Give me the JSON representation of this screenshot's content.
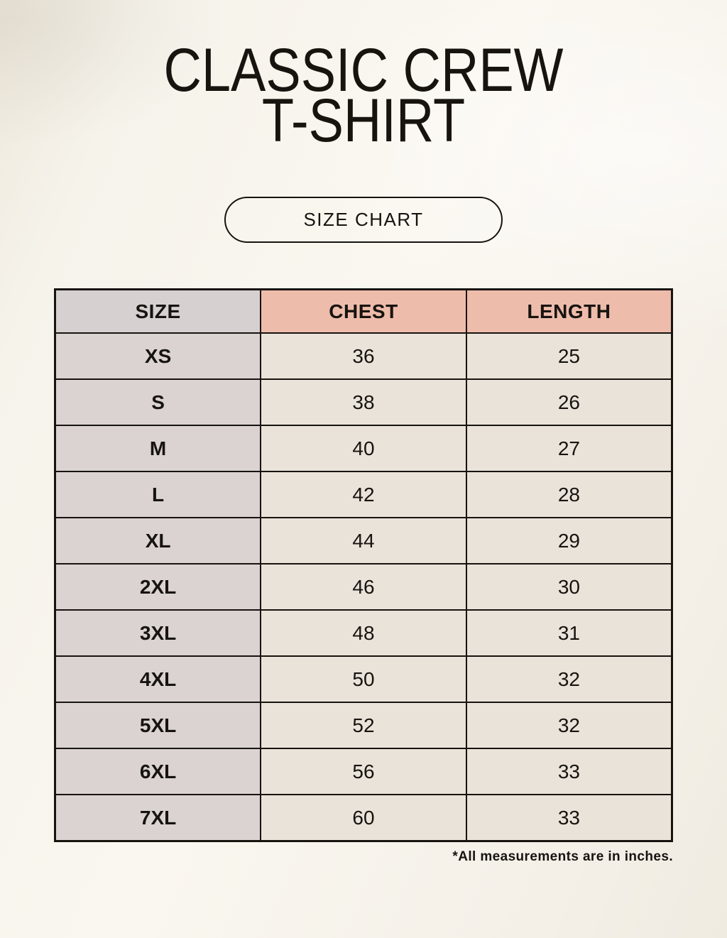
{
  "title": {
    "line1": "CLASSIC CREW",
    "line2": "T-SHIRT"
  },
  "size_chart_button": {
    "label": "SIZE CHART"
  },
  "chart_data": {
    "type": "table",
    "title": "CLASSIC CREW T-SHIRT",
    "columns": [
      "SIZE",
      "CHEST",
      "LENGTH"
    ],
    "rows": [
      [
        "XS",
        "36",
        "25"
      ],
      [
        "S",
        "38",
        "26"
      ],
      [
        "M",
        "40",
        "27"
      ],
      [
        "L",
        "42",
        "28"
      ],
      [
        "XL",
        "44",
        "29"
      ],
      [
        "2XL",
        "46",
        "30"
      ],
      [
        "3XL",
        "48",
        "31"
      ],
      [
        "4XL",
        "50",
        "32"
      ],
      [
        "5XL",
        "52",
        "32"
      ],
      [
        "6XL",
        "56",
        "33"
      ],
      [
        "7XL",
        "60",
        "33"
      ]
    ],
    "units_note": "*All measurements are in inches."
  },
  "footnote": "*All measurements are in inches.",
  "colors": {
    "background": "#f7f4ec",
    "header_pink": "#eebcab",
    "header_gray": "#d6d0d1",
    "size_column_gray": "#dad3d2",
    "data_cell_cream": "#e9e3d9",
    "border_black": "#17130f",
    "text_black": "#17130f"
  }
}
